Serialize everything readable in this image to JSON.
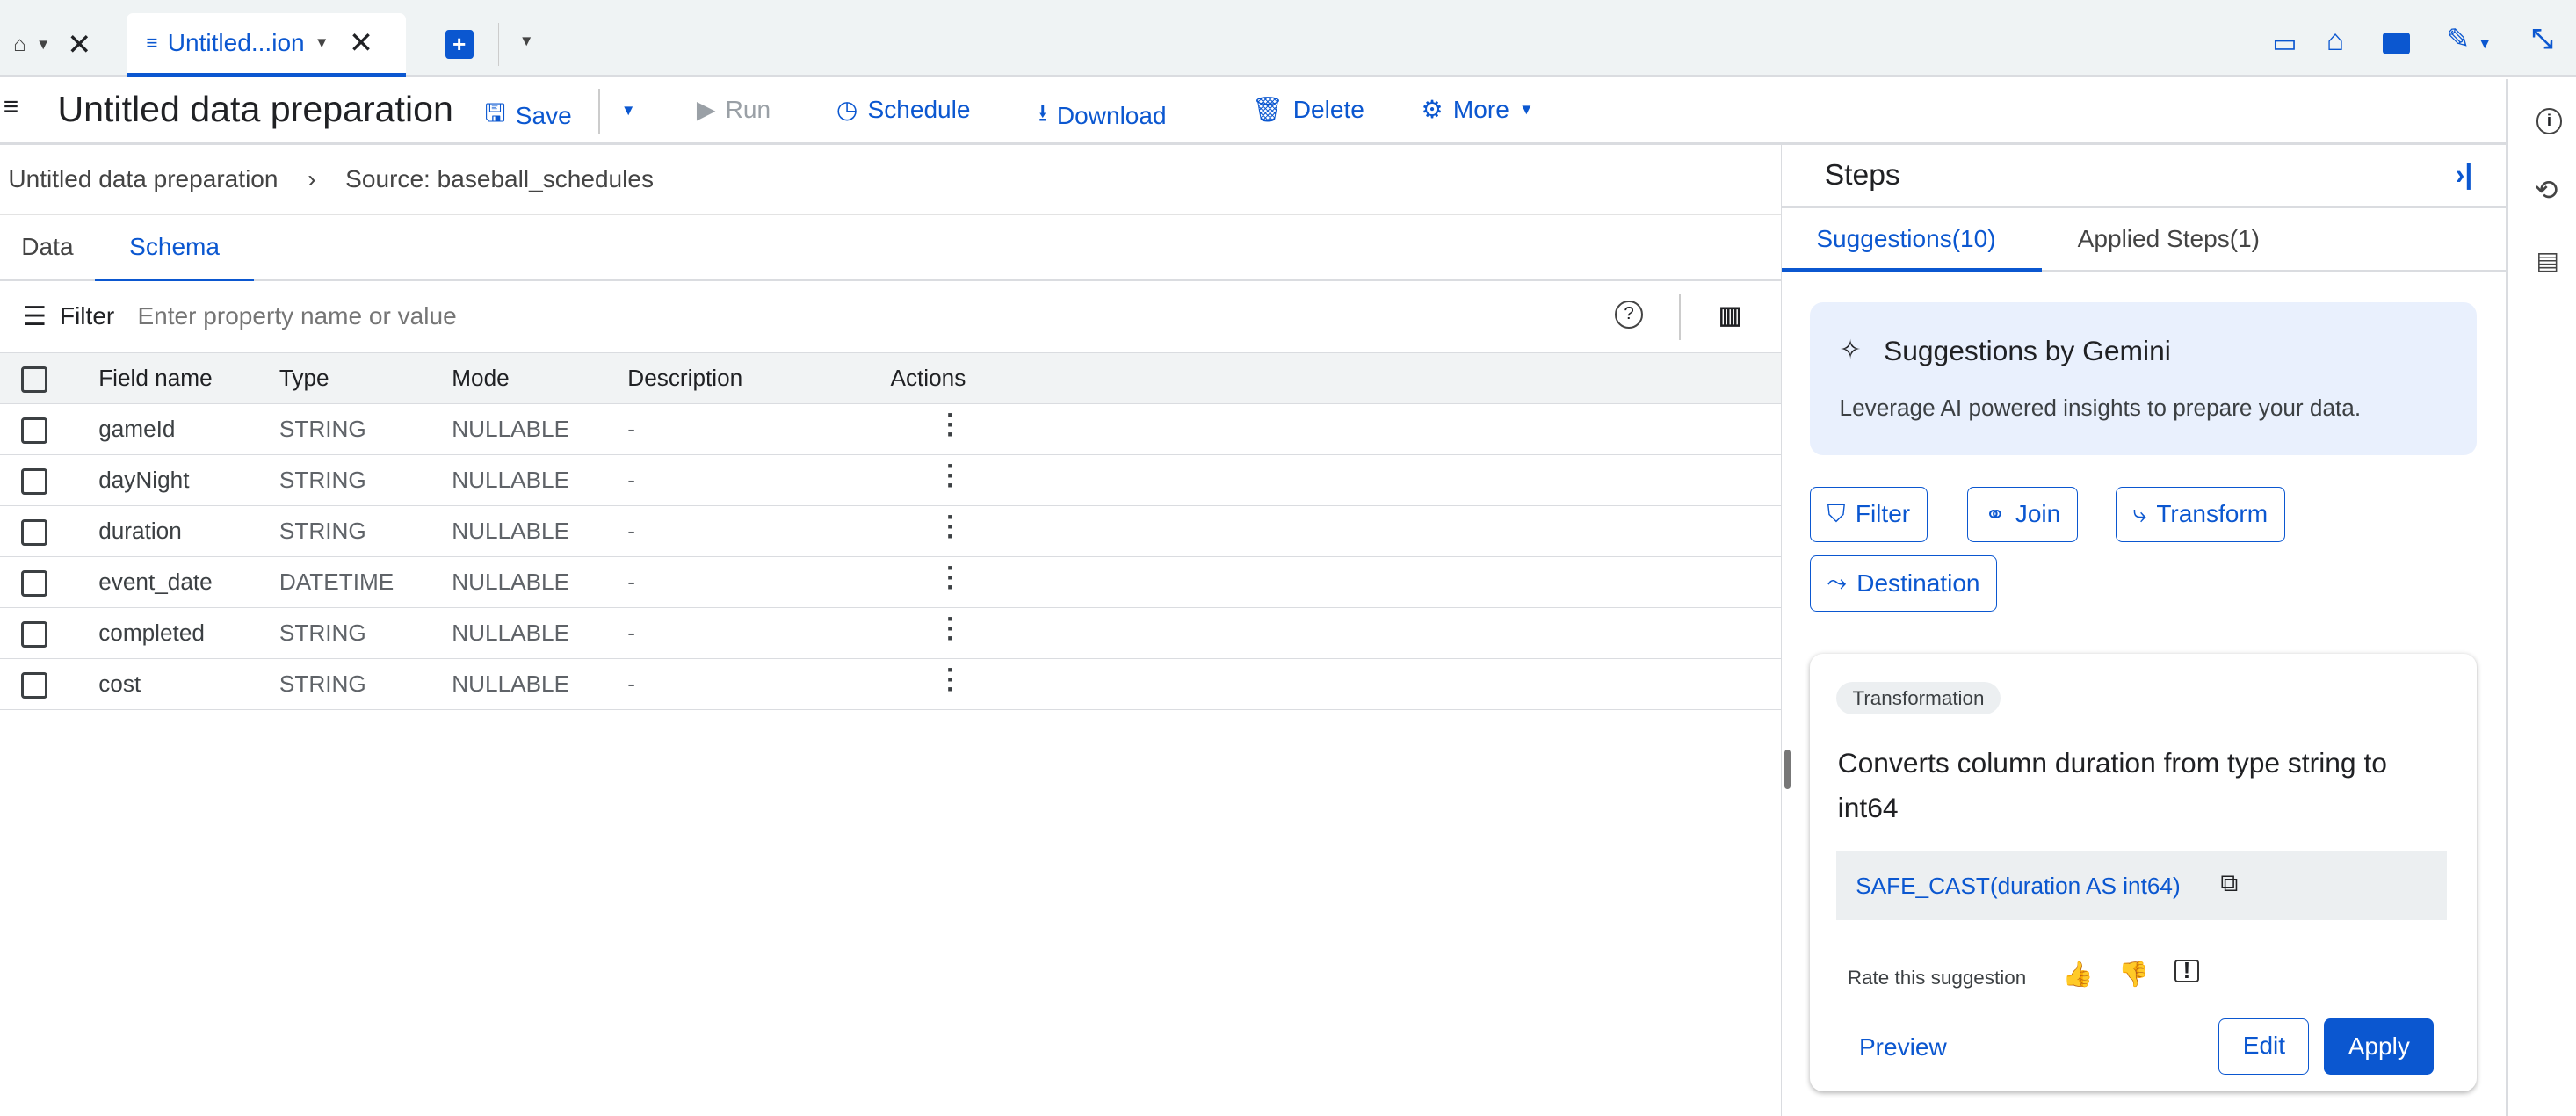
{
  "tabbar": {
    "active_tab": "Untitled...ion"
  },
  "toolbar": {
    "title": "Untitled data preparation",
    "save": "Save",
    "run": "Run",
    "schedule": "Schedule",
    "download": "Download",
    "delete": "Delete",
    "more": "More"
  },
  "breadcrumb": {
    "root": "Untitled data preparation",
    "source": "Source: baseball_schedules"
  },
  "view_tabs": [
    "Data",
    "Schema"
  ],
  "filter": {
    "label": "Filter",
    "placeholder": "Enter property name or value"
  },
  "table": {
    "columns": [
      "Field name",
      "Type",
      "Mode",
      "Description",
      "Actions"
    ],
    "rows": [
      {
        "name": "gameId",
        "type": "STRING",
        "mode": "NULLABLE",
        "desc": "-"
      },
      {
        "name": "dayNight",
        "type": "STRING",
        "mode": "NULLABLE",
        "desc": "-"
      },
      {
        "name": "duration",
        "type": "STRING",
        "mode": "NULLABLE",
        "desc": "-"
      },
      {
        "name": "event_date",
        "type": "DATETIME",
        "mode": "NULLABLE",
        "desc": "-"
      },
      {
        "name": "completed",
        "type": "STRING",
        "mode": "NULLABLE",
        "desc": "-"
      },
      {
        "name": "cost",
        "type": "STRING",
        "mode": "NULLABLE",
        "desc": "-"
      }
    ]
  },
  "steps": {
    "title": "Steps",
    "tabs": [
      "Suggestions(10)",
      "Applied Steps(1)"
    ],
    "gemini": {
      "title": "Suggestions by Gemini",
      "text": "Leverage AI powered insights to prepare your data."
    },
    "chips": [
      "Filter",
      "Join",
      "Transform",
      "Destination"
    ],
    "suggestion": {
      "tag": "Transformation",
      "text": "Converts column duration from type string to int64",
      "code": "SAFE_CAST(duration AS int64)",
      "rate": "Rate this suggestion",
      "preview": "Preview",
      "edit": "Edit",
      "apply": "Apply"
    }
  },
  "colors": {
    "accent": "#0b57d0",
    "topbar": "#eff3f4"
  }
}
